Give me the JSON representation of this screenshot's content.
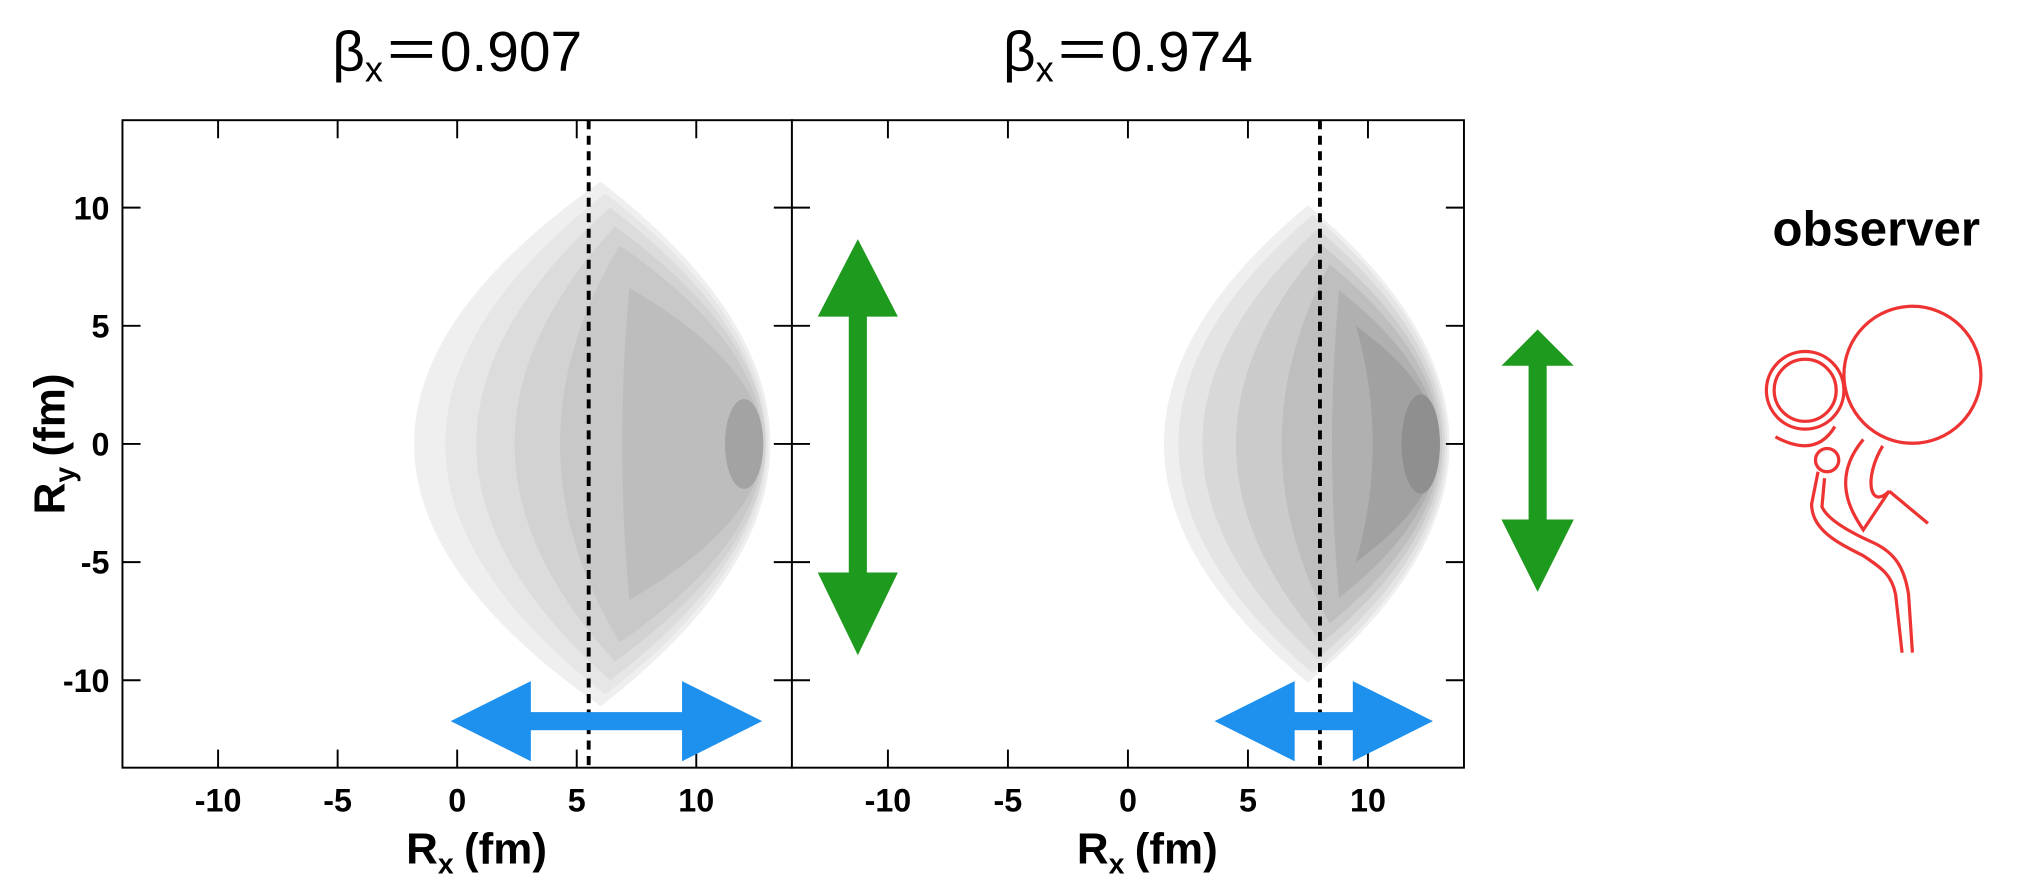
{
  "chart_data": [
    {
      "type": "contour",
      "title": {
        "symbol": "β",
        "subscript": "x",
        "value": "＝0.907"
      },
      "xlabel": {
        "symbol": "R",
        "subscript": "x",
        "unit": "(fm)"
      },
      "ylabel": {
        "symbol": "R",
        "subscript": "y",
        "unit": "(fm)"
      },
      "xlim": [
        -14,
        14
      ],
      "ylim": [
        -13.7,
        13.7
      ],
      "xticks": [
        -10,
        -5,
        0,
        5,
        10
      ],
      "yticks": [
        -10,
        -5,
        0,
        5,
        10
      ],
      "show_ytick_labels": true,
      "vline": 5.5,
      "fill_colors": [
        "#efefef",
        "#e6e6e6",
        "#dcdcdc",
        "#d2d2d2",
        "#c8c8c8",
        "#bdbdbd",
        "#b0b0b0",
        "#a3a3a3"
      ]
    },
    {
      "type": "contour",
      "title": {
        "symbol": "β",
        "subscript": "x",
        "value": "＝0.974"
      },
      "xlabel": {
        "symbol": "R",
        "subscript": "x",
        "unit": "(fm)"
      },
      "xlim": [
        -14,
        14
      ],
      "ylim": [
        -13.7,
        13.7
      ],
      "xticks": [
        -10,
        -5,
        0,
        5,
        10
      ],
      "yticks": [
        -10,
        -5,
        0,
        5,
        10
      ],
      "show_ytick_labels": false,
      "vline": 8,
      "fill_colors": [
        "#efefef",
        "#e4e4e4",
        "#d8d8d8",
        "#cbcbcb",
        "#bebebe",
        "#b0b0b0",
        "#a1a1a1",
        "#8f8f8f"
      ]
    }
  ],
  "observer_label": "observer"
}
